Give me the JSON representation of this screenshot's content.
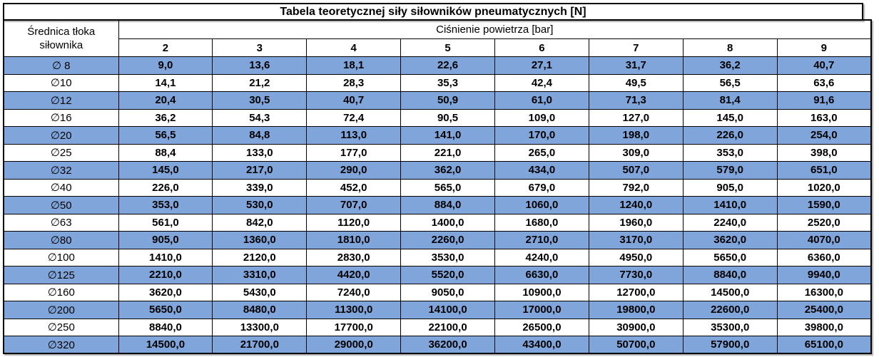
{
  "title": "Tabela teoretycznej siły siłowników pneumatycznych [N]",
  "header": {
    "diameter_label": "Średnica tłoka siłownika",
    "pressure_label": "Ciśnienie powietrza [bar]"
  },
  "colors": {
    "row_highlight": "#7FA5DB",
    "grid_border": "#000000",
    "background": "#FFFFFF",
    "text": "#000000"
  },
  "chart_data": {
    "type": "table",
    "title": "Tabela teoretycznej siły siłowników pneumatycznych [N]",
    "row_axis_label": "Średnica tłoka siłownika",
    "column_axis_label": "Ciśnienie powietrza [bar]",
    "columns_pressure_bar": [
      2,
      3,
      4,
      5,
      6,
      7,
      8,
      9
    ],
    "rows_piston_diameter": [
      "∅ 8",
      "∅10",
      "∅12",
      "∅16",
      "∅20",
      "∅25",
      "∅32",
      "∅40",
      "∅50",
      "∅63",
      "∅80",
      "∅100",
      "∅125",
      "∅160",
      "∅200",
      "∅250",
      "∅320"
    ],
    "forces_N": [
      [
        9.0,
        13.6,
        18.1,
        22.6,
        27.1,
        31.7,
        36.2,
        40.7
      ],
      [
        14.1,
        21.2,
        28.3,
        35.3,
        42.4,
        49.5,
        56.5,
        63.6
      ],
      [
        20.4,
        30.5,
        40.7,
        50.9,
        61.0,
        71.3,
        81.4,
        91.6
      ],
      [
        36.2,
        54.3,
        72.4,
        90.5,
        109.0,
        127.0,
        145.0,
        163.0
      ],
      [
        56.5,
        84.8,
        113.0,
        141.0,
        170.0,
        198.0,
        226.0,
        254.0
      ],
      [
        88.4,
        133.0,
        177.0,
        221.0,
        265.0,
        309.0,
        353.0,
        398.0
      ],
      [
        145.0,
        217.0,
        290.0,
        362.0,
        434.0,
        507.0,
        579.0,
        651.0
      ],
      [
        226.0,
        339.0,
        452.0,
        565.0,
        679.0,
        792.0,
        905.0,
        1020.0
      ],
      [
        353.0,
        530.0,
        707.0,
        884.0,
        1060.0,
        1240.0,
        1410.0,
        1590.0
      ],
      [
        561.0,
        842.0,
        1120.0,
        1400.0,
        1680.0,
        1960.0,
        2240.0,
        2520.0
      ],
      [
        905.0,
        1360.0,
        1810.0,
        2260.0,
        2710.0,
        3170.0,
        3620.0,
        4070.0
      ],
      [
        1410.0,
        2120.0,
        2830.0,
        3530.0,
        4240.0,
        4950.0,
        5650.0,
        6360.0
      ],
      [
        2210.0,
        3310.0,
        4420.0,
        5520.0,
        6630.0,
        7730.0,
        8840.0,
        9940.0
      ],
      [
        3620.0,
        5430.0,
        7240.0,
        9050.0,
        10900.0,
        12700.0,
        14500.0,
        16300.0
      ],
      [
        5650.0,
        8480.0,
        11300.0,
        14100.0,
        17000.0,
        19800.0,
        22600.0,
        25400.0
      ],
      [
        8840.0,
        13300.0,
        17700.0,
        22100.0,
        26500.0,
        30900.0,
        35300.0,
        39800.0
      ],
      [
        14500.0,
        21700.0,
        29000.0,
        36200.0,
        43400.0,
        50700.0,
        57900.0,
        65100.0
      ]
    ]
  }
}
